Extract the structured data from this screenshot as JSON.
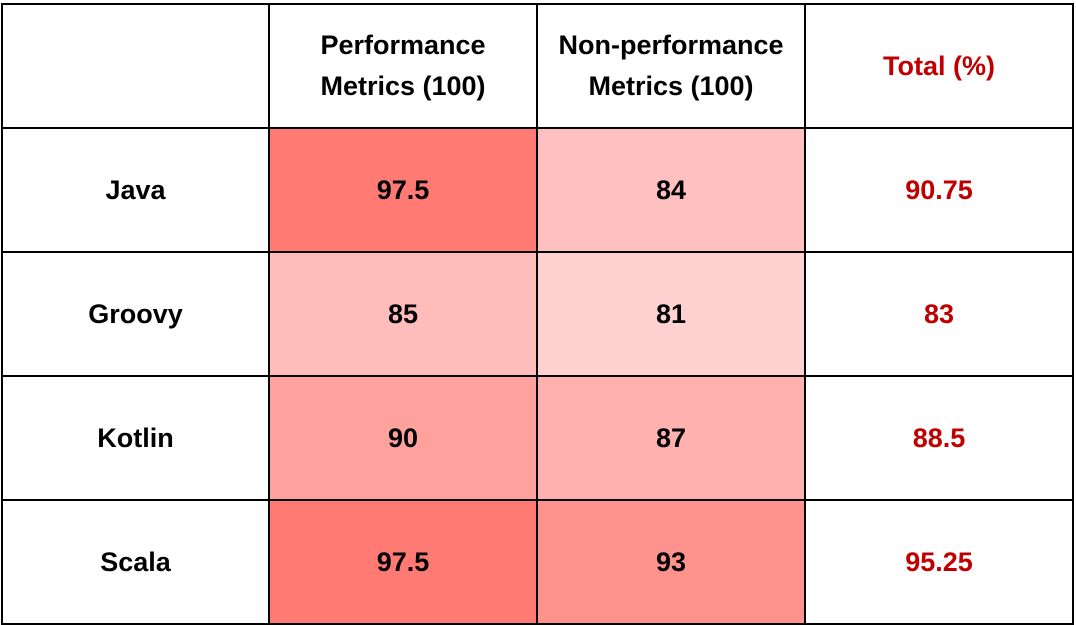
{
  "chart_data": {
    "type": "heatmap",
    "columns": [
      {
        "key": "corner",
        "label": ""
      },
      {
        "key": "performance",
        "label": "Performance Metrics (100)",
        "lines": [
          "Performance",
          "Metrics (100)"
        ]
      },
      {
        "key": "non_performance",
        "label": "Non-performance Metrics (100)",
        "lines": [
          "Non-performance",
          "Metrics (100)"
        ]
      },
      {
        "key": "total",
        "label": "Total (%)",
        "lines": [
          "Total (%)"
        ]
      }
    ],
    "rows": [
      {
        "label": "Java",
        "performance": "97.5",
        "non_performance": "84",
        "total": "90.75"
      },
      {
        "label": "Groovy",
        "performance": "85",
        "non_performance": "81",
        "total": "83"
      },
      {
        "label": "Kotlin",
        "performance": "90",
        "non_performance": "87",
        "total": "88.5"
      },
      {
        "label": "Scala",
        "performance": "97.5",
        "non_performance": "93",
        "total": "95.25"
      }
    ],
    "color_scale": {
      "low": "#ffd1d1",
      "high": "#ff7a73"
    },
    "total_text_color": "#c00000",
    "grid": true
  }
}
